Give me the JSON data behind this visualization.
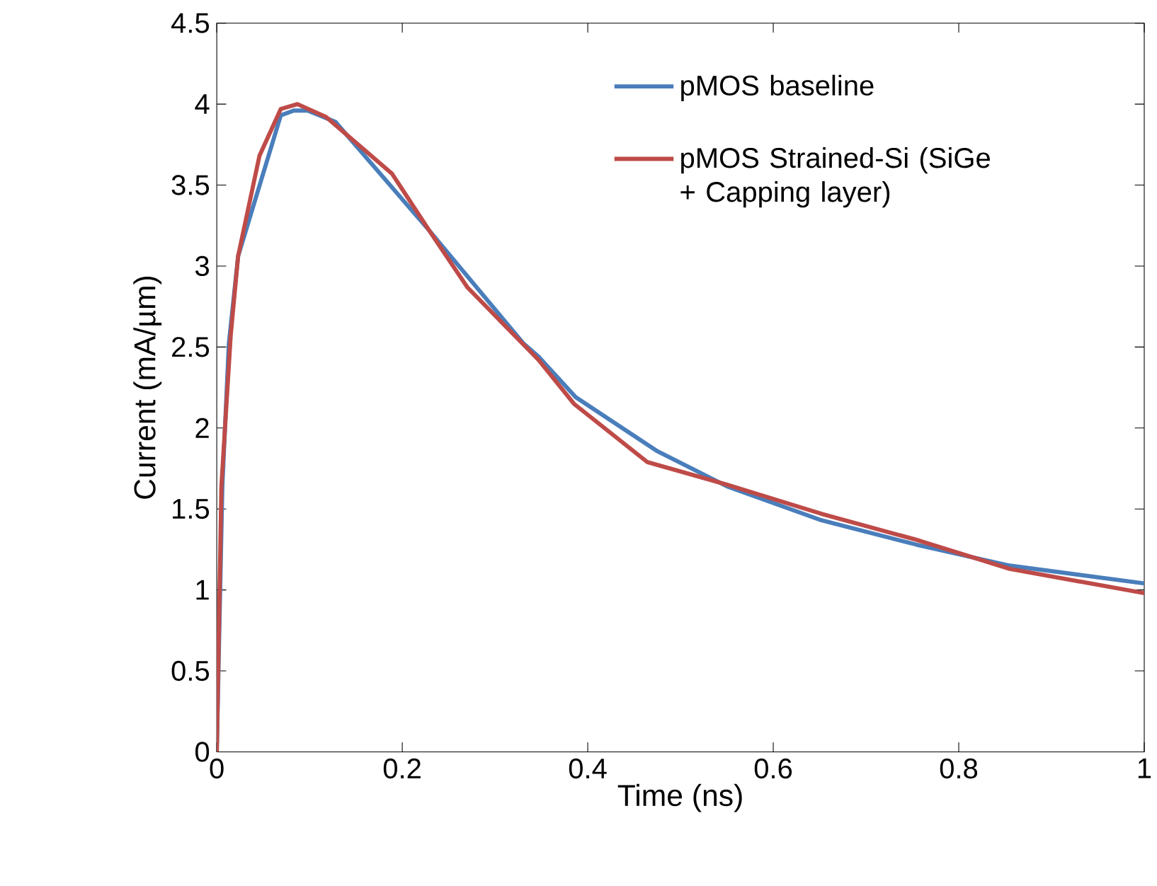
{
  "chart_data": {
    "type": "line",
    "xlabel": "Time (ns)",
    "ylabel": "Current (mA/µm)",
    "xlim": [
      0,
      1
    ],
    "ylim": [
      0,
      4.5
    ],
    "xticks": [
      0,
      0.2,
      0.4,
      0.6,
      0.8,
      1
    ],
    "yticks": [
      0,
      0.5,
      1,
      1.5,
      2,
      2.5,
      3,
      3.5,
      4,
      4.5
    ],
    "legend": "top right",
    "marker": "none",
    "line_style": "solid",
    "series": [
      {
        "name": "pMOS baseline",
        "color": "#4a7ebb",
        "x": [
          0,
          0.006,
          0.013,
          0.023,
          0.069,
          0.083,
          0.098,
          0.128,
          0.229,
          0.331,
          0.347,
          0.387,
          0.474,
          0.55,
          0.652,
          0.754,
          0.855,
          1
        ],
        "values": [
          0,
          1.64,
          2.52,
          3.06,
          3.93,
          3.96,
          3.96,
          3.89,
          3.22,
          2.52,
          2.44,
          2.19,
          1.86,
          1.64,
          1.43,
          1.28,
          1.15,
          1.04
        ]
      },
      {
        "name": "pMOS Strained-Si (SiGe + Capping layer)",
        "color": "#be4b48",
        "x": [
          0,
          0.005,
          0.015,
          0.023,
          0.046,
          0.069,
          0.087,
          0.118,
          0.189,
          0.229,
          0.27,
          0.347,
          0.385,
          0.464,
          0.55,
          0.652,
          0.754,
          0.855,
          1
        ],
        "values": [
          0,
          1.64,
          2.57,
          3.06,
          3.68,
          3.97,
          4.0,
          3.92,
          3.57,
          3.22,
          2.87,
          2.42,
          2.15,
          1.79,
          1.65,
          1.47,
          1.31,
          1.13,
          0.98
        ]
      }
    ]
  }
}
